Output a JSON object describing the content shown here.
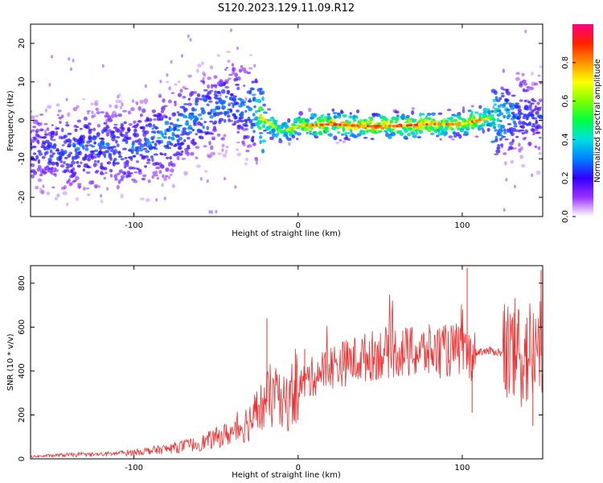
{
  "title": "S120.2023.129.11.09.R12",
  "chart_data": [
    {
      "type": "heatmap",
      "xlabel": "Height of straight line (km)",
      "ylabel": "Frequency (Hz)",
      "xlim": [
        -163,
        149
      ],
      "ylim": [
        -25,
        25
      ],
      "x_ticks": [
        -100,
        0,
        100
      ],
      "y_ticks": [
        -20,
        -10,
        0,
        10,
        20
      ],
      "colorbar": {
        "label": "Normalized spectral amplitude",
        "range": [
          0.0,
          1.0
        ],
        "ticks": [
          0.0,
          0.2,
          0.4,
          0.6,
          0.8
        ]
      },
      "ridge": [
        {
          "x": -160,
          "y": -8,
          "amp": 0.25
        },
        {
          "x": -140,
          "y": -8,
          "amp": 0.3
        },
        {
          "x": -120,
          "y": -7,
          "amp": 0.3
        },
        {
          "x": -100,
          "y": -7,
          "amp": 0.3
        },
        {
          "x": -80,
          "y": -4,
          "amp": 0.35
        },
        {
          "x": -60,
          "y": 1,
          "amp": 0.35
        },
        {
          "x": -40,
          "y": 5,
          "amp": 0.3
        },
        {
          "x": -30,
          "y": 3,
          "amp": 0.35
        },
        {
          "x": -20,
          "y": 0,
          "amp": 0.7
        },
        {
          "x": -10,
          "y": -3,
          "amp": 0.5
        },
        {
          "x": 0,
          "y": -1.5,
          "amp": 0.7
        },
        {
          "x": 20,
          "y": -1,
          "amp": 0.85
        },
        {
          "x": 40,
          "y": -1.5,
          "amp": 0.8
        },
        {
          "x": 60,
          "y": -1.5,
          "amp": 0.85
        },
        {
          "x": 80,
          "y": -1,
          "amp": 0.8
        },
        {
          "x": 100,
          "y": -1,
          "amp": 0.7
        },
        {
          "x": 110,
          "y": 0,
          "amp": 0.85
        },
        {
          "x": 120,
          "y": 1,
          "amp": 0.5
        },
        {
          "x": 135,
          "y": 2,
          "amp": 0.3
        },
        {
          "x": 148,
          "y": 1,
          "amp": 0.25
        }
      ]
    },
    {
      "type": "line",
      "xlabel": "Height of straight line (km)",
      "ylabel": "SNR (10 * v/v)",
      "xlim": [
        -163,
        149
      ],
      "ylim": [
        0,
        880
      ],
      "x_ticks": [
        -100,
        0,
        100
      ],
      "y_ticks": [
        0,
        200,
        400,
        600,
        800
      ],
      "series": [
        {
          "color": "#ee3030",
          "x": [
            -163,
            -140,
            -120,
            -100,
            -80,
            -60,
            -40,
            -30,
            -20,
            -15,
            -10,
            0,
            10,
            20,
            30,
            40,
            50,
            60,
            70,
            80,
            90,
            100,
            105,
            110,
            120,
            130,
            140,
            149
          ],
          "y": [
            10,
            18,
            20,
            30,
            45,
            70,
            120,
            170,
            250,
            300,
            230,
            330,
            380,
            420,
            440,
            460,
            480,
            490,
            480,
            490,
            490,
            500,
            470,
            490,
            490,
            470,
            480,
            470
          ]
        }
      ],
      "spikes": [
        {
          "x": -19,
          "y": 640
        },
        {
          "x": 4,
          "y": 500
        },
        {
          "x": 103,
          "y": 870
        },
        {
          "x": 106,
          "y": 210
        },
        {
          "x": 143,
          "y": 150
        },
        {
          "x": 148,
          "y": 860
        }
      ]
    }
  ]
}
